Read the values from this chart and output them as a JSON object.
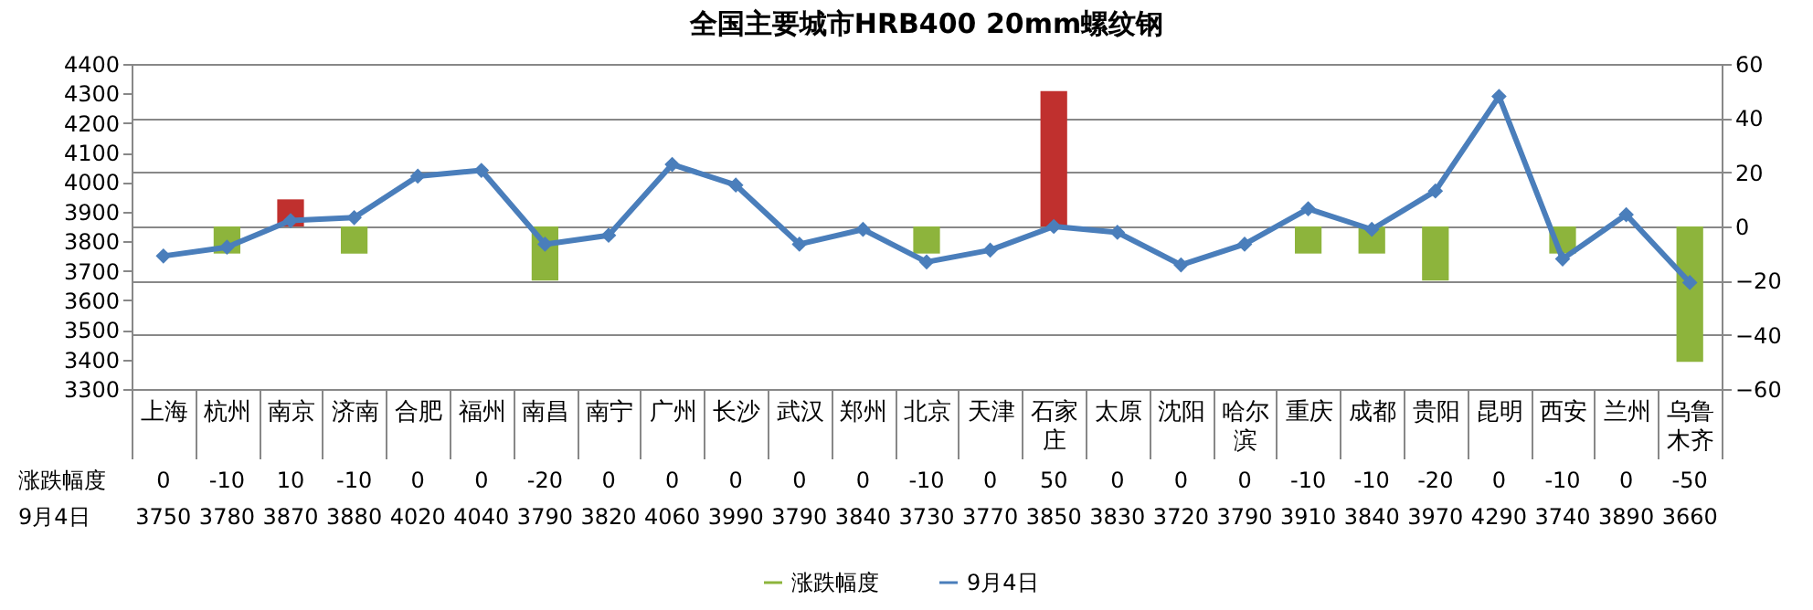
{
  "chart_data": {
    "type": "bar",
    "title": "全国主要城市HRB400 20mm螺纹钢",
    "categories": [
      "上海",
      "杭州",
      "南京",
      "济南",
      "合肥",
      "福州",
      "南昌",
      "南宁",
      "广州",
      "长沙",
      "武汉",
      "郑州",
      "北京",
      "天津",
      "石家庄",
      "太原",
      "沈阳",
      "哈尔滨",
      "重庆",
      "成都",
      "贵阳",
      "昆明",
      "西安",
      "兰州",
      "乌鲁木齐"
    ],
    "series": [
      {
        "name": "涨跌幅度",
        "axis": "y2",
        "color": "#8db43c",
        "colors": [
          "#8db43c",
          "#8db43c",
          "#c0302e",
          "#8db43c",
          "#8db43c",
          "#8db43c",
          "#8db43c",
          "#8db43c",
          "#8db43c",
          "#8db43c",
          "#8db43c",
          "#8db43c",
          "#8db43c",
          "#8db43c",
          "#c0302e",
          "#8db43c",
          "#8db43c",
          "#8db43c",
          "#8db43c",
          "#8db43c",
          "#8db43c",
          "#8db43c",
          "#8db43c",
          "#8db43c",
          "#8db43c"
        ],
        "values": [
          0,
          -10,
          10,
          -10,
          0,
          0,
          -20,
          0,
          0,
          0,
          0,
          0,
          -10,
          0,
          50,
          0,
          0,
          0,
          -10,
          -10,
          -20,
          0,
          -10,
          0,
          -50
        ]
      },
      {
        "name": "9月4日",
        "type": "line",
        "color": "#4a7ebb",
        "values": [
          3750,
          3780,
          3870,
          3880,
          4020,
          4040,
          3790,
          3820,
          4060,
          3990,
          3790,
          3840,
          3730,
          3770,
          3850,
          3830,
          3720,
          3790,
          3910,
          3840,
          3970,
          4290,
          3740,
          3890,
          3660
        ]
      }
    ],
    "marker": "diamond",
    "ylim": [
      3300,
      4400
    ],
    "yticks": [
      3300,
      3400,
      3500,
      3600,
      3700,
      3800,
      3900,
      4000,
      4100,
      4200,
      4300,
      4400
    ],
    "y2lim": [
      -60,
      60
    ],
    "y2ticks": [
      -60,
      -40,
      -20,
      0,
      20,
      40,
      60
    ],
    "grid": true,
    "legend": "bottom",
    "data_labels": true
  }
}
